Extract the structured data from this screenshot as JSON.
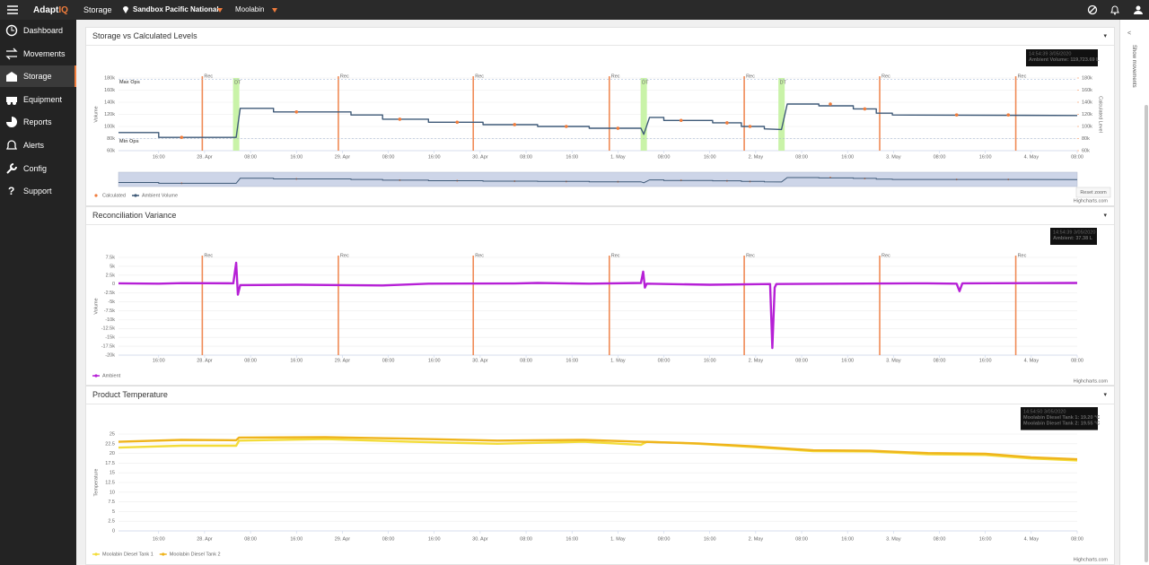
{
  "topbar": {
    "logo_a": "Adapt",
    "logo_b": "IQ",
    "section": "Storage",
    "site": "Sandbox Pacific National",
    "location": "Moolabin"
  },
  "sidebar": {
    "items": [
      "Dashboard",
      "Movements",
      "Storage",
      "Equipment",
      "Reports",
      "Alerts",
      "Config",
      "Support"
    ],
    "active": "Storage"
  },
  "side_panel": {
    "toggle": "Show movements"
  },
  "chart_data": [
    {
      "type": "line",
      "title": "Storage vs Calculated Levels",
      "y_label": "Volume",
      "y2_label": "Calculated Level",
      "grid": true,
      "xlim": [
        9,
        176
      ],
      "xticks": [
        {
          "value": 16,
          "label": "16:00"
        },
        {
          "value": 24,
          "label": "28. Apr"
        },
        {
          "value": 32,
          "label": "08:00"
        },
        {
          "value": 40,
          "label": "16:00"
        },
        {
          "value": 48,
          "label": "29. Apr"
        },
        {
          "value": 56,
          "label": "08:00"
        },
        {
          "value": 64,
          "label": "16:00"
        },
        {
          "value": 72,
          "label": "30. Apr"
        },
        {
          "value": 80,
          "label": "08:00"
        },
        {
          "value": 88,
          "label": "16:00"
        },
        {
          "value": 96,
          "label": "1. May"
        },
        {
          "value": 104,
          "label": "08:00"
        },
        {
          "value": 112,
          "label": "16:00"
        },
        {
          "value": 120,
          "label": "2. May"
        },
        {
          "value": 128,
          "label": "08:00"
        },
        {
          "value": 136,
          "label": "16:00"
        },
        {
          "value": 144,
          "label": "3. May"
        },
        {
          "value": 152,
          "label": "08:00"
        },
        {
          "value": 160,
          "label": "16:00"
        },
        {
          "value": 168,
          "label": "4. May"
        },
        {
          "value": 176,
          "label": "08:00"
        }
      ],
      "ylim": [
        60000,
        180000
      ],
      "yticks": [
        {
          "value": 60000,
          "label": "60k"
        },
        {
          "value": 80000,
          "label": "80k"
        },
        {
          "value": 100000,
          "label": "100k"
        },
        {
          "value": 120000,
          "label": "120k"
        },
        {
          "value": 140000,
          "label": "140k"
        },
        {
          "value": 160000,
          "label": "160k"
        },
        {
          "value": 180000,
          "label": "180k"
        }
      ],
      "y2lim": [
        60000,
        180000
      ],
      "y2ticks": [
        {
          "value": 60000,
          "label": "60k"
        },
        {
          "value": 80000,
          "label": "80k"
        },
        {
          "value": 100000,
          "label": "100k"
        },
        {
          "value": 120000,
          "label": "120k"
        },
        {
          "value": 140000,
          "label": "140k"
        },
        {
          "value": 160000,
          "label": "160k"
        },
        {
          "value": 180000,
          "label": "180k"
        }
      ],
      "plot_lines": [
        {
          "value": 178000,
          "label": "Max Ops"
        },
        {
          "value": 80000,
          "label": "Min Ops"
        }
      ],
      "vlines": [
        {
          "x": 23.6,
          "label": "Rec"
        },
        {
          "x": 47.3,
          "label": "Rec"
        },
        {
          "x": 70.8,
          "label": "Rec"
        },
        {
          "x": 94.5,
          "label": "Rec"
        },
        {
          "x": 118,
          "label": "Rec"
        },
        {
          "x": 141.6,
          "label": "Rec"
        },
        {
          "x": 165.3,
          "label": "Rec"
        }
      ],
      "bands": [
        {
          "x": 29.5,
          "label": "DT"
        },
        {
          "x": 100.5,
          "label": "DT"
        },
        {
          "x": 124.5,
          "label": "DT"
        }
      ],
      "series": [
        {
          "name": "Calculated",
          "color": "#f07c3c",
          "style": "markers",
          "axis": "y2",
          "x": [
            20,
            40,
            58,
            68,
            78,
            87,
            96,
            107,
            115,
            119,
            133,
            139,
            155,
            164
          ],
          "values": [
            82000,
            124000,
            112000,
            107000,
            103000,
            100000,
            97000,
            110000,
            106000,
            100000,
            137000,
            129000,
            119000,
            119000
          ]
        },
        {
          "name": "Ambient Volume",
          "color": "#3f5a78",
          "style": "line",
          "x": [
            9,
            16,
            16,
            29.5,
            30.2,
            36,
            36,
            49.5,
            49.5,
            55,
            55,
            63,
            63,
            72.5,
            72.5,
            82,
            82,
            91,
            91,
            100,
            100.5,
            101.5,
            104,
            104,
            112.5,
            112.5,
            117.5,
            117.5,
            121.5,
            121.5,
            124.5,
            125.5,
            131,
            131,
            137,
            137,
            141,
            141,
            143.8,
            143.8,
            176
          ],
          "values": [
            90000,
            90000,
            82000,
            82000,
            130000,
            130000,
            124000,
            124000,
            119000,
            119000,
            112000,
            112000,
            107000,
            107000,
            103000,
            103000,
            100000,
            100000,
            97000,
            97000,
            87000,
            115000,
            115000,
            110000,
            110000,
            106000,
            106000,
            100000,
            100000,
            96000,
            95000,
            137000,
            137000,
            134000,
            134000,
            129000,
            129000,
            122000,
            122000,
            119000,
            118000
          ]
        }
      ],
      "tooltip": [
        "14:54:39 3/05/2020",
        "Ambient Volume: 119,723.69 L"
      ],
      "reset_zoom": "Reset zoom",
      "credits": "Highcharts.com"
    },
    {
      "type": "line",
      "title": "Reconciliation Variance",
      "y_label": "Volume",
      "grid": true,
      "xlim": [
        9,
        176
      ],
      "xticks": [
        {
          "value": 16,
          "label": "16:00"
        },
        {
          "value": 24,
          "label": "28. Apr"
        },
        {
          "value": 32,
          "label": "08:00"
        },
        {
          "value": 40,
          "label": "16:00"
        },
        {
          "value": 48,
          "label": "29. Apr"
        },
        {
          "value": 56,
          "label": "08:00"
        },
        {
          "value": 64,
          "label": "16:00"
        },
        {
          "value": 72,
          "label": "30. Apr"
        },
        {
          "value": 80,
          "label": "08:00"
        },
        {
          "value": 88,
          "label": "16:00"
        },
        {
          "value": 96,
          "label": "1. May"
        },
        {
          "value": 104,
          "label": "08:00"
        },
        {
          "value": 112,
          "label": "16:00"
        },
        {
          "value": 120,
          "label": "2. May"
        },
        {
          "value": 128,
          "label": "08:00"
        },
        {
          "value": 136,
          "label": "16:00"
        },
        {
          "value": 144,
          "label": "3. May"
        },
        {
          "value": 152,
          "label": "08:00"
        },
        {
          "value": 160,
          "label": "16:00"
        },
        {
          "value": 168,
          "label": "4. May"
        },
        {
          "value": 176,
          "label": "08:00"
        }
      ],
      "ylim": [
        -20000,
        7500
      ],
      "yticks": [
        {
          "value": -20000,
          "label": "-20k"
        },
        {
          "value": -17500,
          "label": "-17.5k"
        },
        {
          "value": -15000,
          "label": "-15k"
        },
        {
          "value": -12500,
          "label": "-12.5k"
        },
        {
          "value": -10000,
          "label": "-10k"
        },
        {
          "value": -7500,
          "label": "-7.5k"
        },
        {
          "value": -5000,
          "label": "-5k"
        },
        {
          "value": -2500,
          "label": "-2.5k"
        },
        0,
        {
          "value": 2500,
          "label": "2.5k"
        },
        {
          "value": 5000,
          "label": "5k"
        },
        {
          "value": 7500,
          "label": "7.5k"
        }
      ],
      "vlines": [
        {
          "x": 23.6,
          "label": "Rec"
        },
        {
          "x": 47.3,
          "label": "Rec"
        },
        {
          "x": 70.8,
          "label": "Rec"
        },
        {
          "x": 94.5,
          "label": "Rec"
        },
        {
          "x": 118,
          "label": "Rec"
        },
        {
          "x": 141.6,
          "label": "Rec"
        },
        {
          "x": 165.3,
          "label": "Rec"
        }
      ],
      "series": [
        {
          "name": "Ambient",
          "color": "#b620d6",
          "style": "line",
          "x": [
            9,
            16,
            20,
            29,
            29.5,
            29.8,
            30.2,
            40,
            55,
            63,
            78,
            82,
            91,
            100,
            100.4,
            100.7,
            101,
            112,
            122.5,
            122.9,
            123.3,
            123.6,
            135,
            150,
            155,
            155.5,
            156,
            176
          ],
          "values": [
            200,
            100,
            250,
            200,
            6000,
            -3000,
            -300,
            -200,
            -400,
            100,
            150,
            300,
            100,
            300,
            3500,
            -1000,
            100,
            -200,
            0,
            -18000,
            -1000,
            0,
            100,
            200,
            100,
            -2000,
            200,
            300
          ]
        }
      ],
      "tooltip": [
        "14:54:39 3/05/2020",
        "Ambient: 37.38 L"
      ],
      "credits": "Highcharts.com"
    },
    {
      "type": "line",
      "title": "Product Temperature",
      "y_label": "Temperature",
      "grid": true,
      "xlim": [
        9,
        176
      ],
      "xticks": [
        {
          "value": 16,
          "label": "16:00"
        },
        {
          "value": 24,
          "label": "28. Apr"
        },
        {
          "value": 32,
          "label": "08:00"
        },
        {
          "value": 40,
          "label": "16:00"
        },
        {
          "value": 48,
          "label": "29. Apr"
        },
        {
          "value": 56,
          "label": "08:00"
        },
        {
          "value": 64,
          "label": "16:00"
        },
        {
          "value": 72,
          "label": "30. Apr"
        },
        {
          "value": 80,
          "label": "08:00"
        },
        {
          "value": 88,
          "label": "16:00"
        },
        {
          "value": 96,
          "label": "1. May"
        },
        {
          "value": 104,
          "label": "08:00"
        },
        {
          "value": 112,
          "label": "16:00"
        },
        {
          "value": 120,
          "label": "2. May"
        },
        {
          "value": 128,
          "label": "08:00"
        },
        {
          "value": 136,
          "label": "16:00"
        },
        {
          "value": 144,
          "label": "3. May"
        },
        {
          "value": 152,
          "label": "08:00"
        },
        {
          "value": 160,
          "label": "16:00"
        },
        {
          "value": 168,
          "label": "4. May"
        },
        {
          "value": 176,
          "label": "08:00"
        }
      ],
      "ylim": [
        0,
        25
      ],
      "yticks": [
        0,
        2.5,
        5,
        7.5,
        10,
        12.5,
        15,
        17.5,
        20,
        22.5,
        25
      ],
      "series": [
        {
          "name": "Moolabin Diesel Tank 1",
          "color": "#f3dc3a",
          "style": "line",
          "x": [
            9,
            20,
            29.5,
            30,
            45,
            60,
            75,
            90,
            100,
            101,
            110,
            120,
            130,
            140,
            150,
            160,
            168,
            176
          ],
          "values": [
            21.5,
            22,
            22,
            23.3,
            23.7,
            23,
            22.5,
            23,
            22.2,
            23,
            22.5,
            21.6,
            20.6,
            20.5,
            19.8,
            19.6,
            18.7,
            18.2
          ]
        },
        {
          "name": "Moolabin Diesel Tank 2",
          "color": "#efb41c",
          "style": "line",
          "x": [
            9,
            20,
            29.5,
            30,
            45,
            60,
            75,
            90,
            100,
            110,
            120,
            130,
            140,
            150,
            160,
            168,
            176
          ],
          "values": [
            23,
            23.5,
            23.4,
            24.1,
            24.2,
            23.8,
            23.3,
            23.5,
            23,
            22.6,
            21.8,
            20.8,
            20.7,
            20.1,
            19.9,
            19,
            18.5
          ]
        }
      ],
      "tooltip": [
        "14:54:50 3/05/2020",
        "Moolabin Diesel Tank 1: 19.20 °C",
        "Moolabin Diesel Tank 2: 19.55 °C"
      ],
      "credits": "Highcharts.com"
    }
  ]
}
